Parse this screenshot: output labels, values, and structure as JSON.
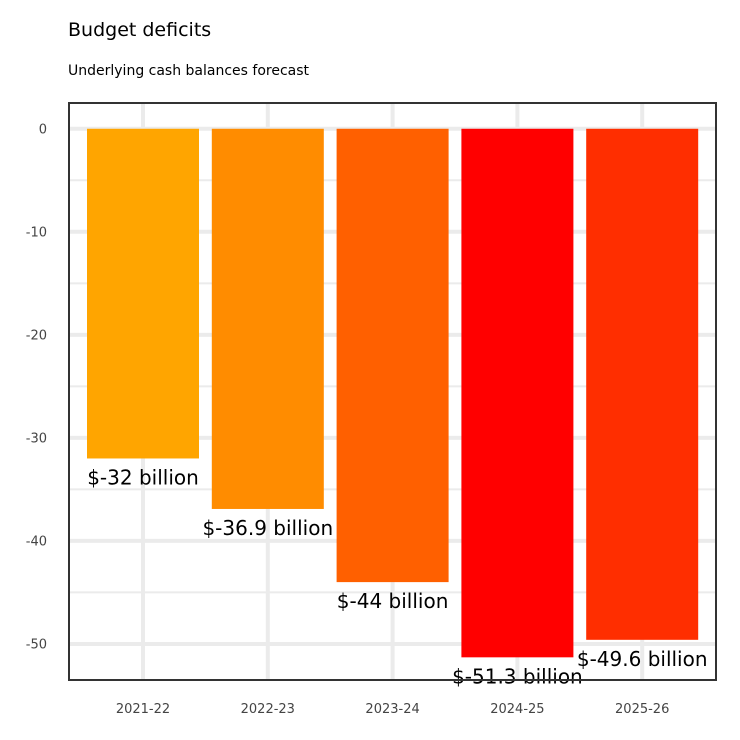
{
  "chart_data": {
    "type": "bar",
    "title": "Budget deficits",
    "subtitle": "Underlying cash balances forecast",
    "categories": [
      "2021-22",
      "2022-23",
      "2023-24",
      "2024-25",
      "2025-26"
    ],
    "values": [
      -32,
      -36.9,
      -44,
      -51.3,
      -49.6
    ],
    "data_labels": [
      "$-32 billion",
      "$-36.9 billion",
      "$-44 billion",
      "$-51.3 billion",
      "$-49.6 billion"
    ],
    "bar_colors": [
      "#FFA500",
      "#FF8C00",
      "#FF6000",
      "#FF0000",
      "#FF2E00"
    ],
    "ylim": [
      -53.5,
      2.5
    ],
    "yticks": [
      0,
      -10,
      -20,
      -30,
      -40,
      -50
    ],
    "ytick_labels": [
      "0",
      "-10",
      "-20",
      "-30",
      "-40",
      "-50"
    ],
    "xlabel": "",
    "ylabel": "",
    "grid": true,
    "legend": false,
    "colors": {
      "grid": "#EBEBEB",
      "panel_border": "#333333",
      "tick_text": "#444444"
    }
  }
}
